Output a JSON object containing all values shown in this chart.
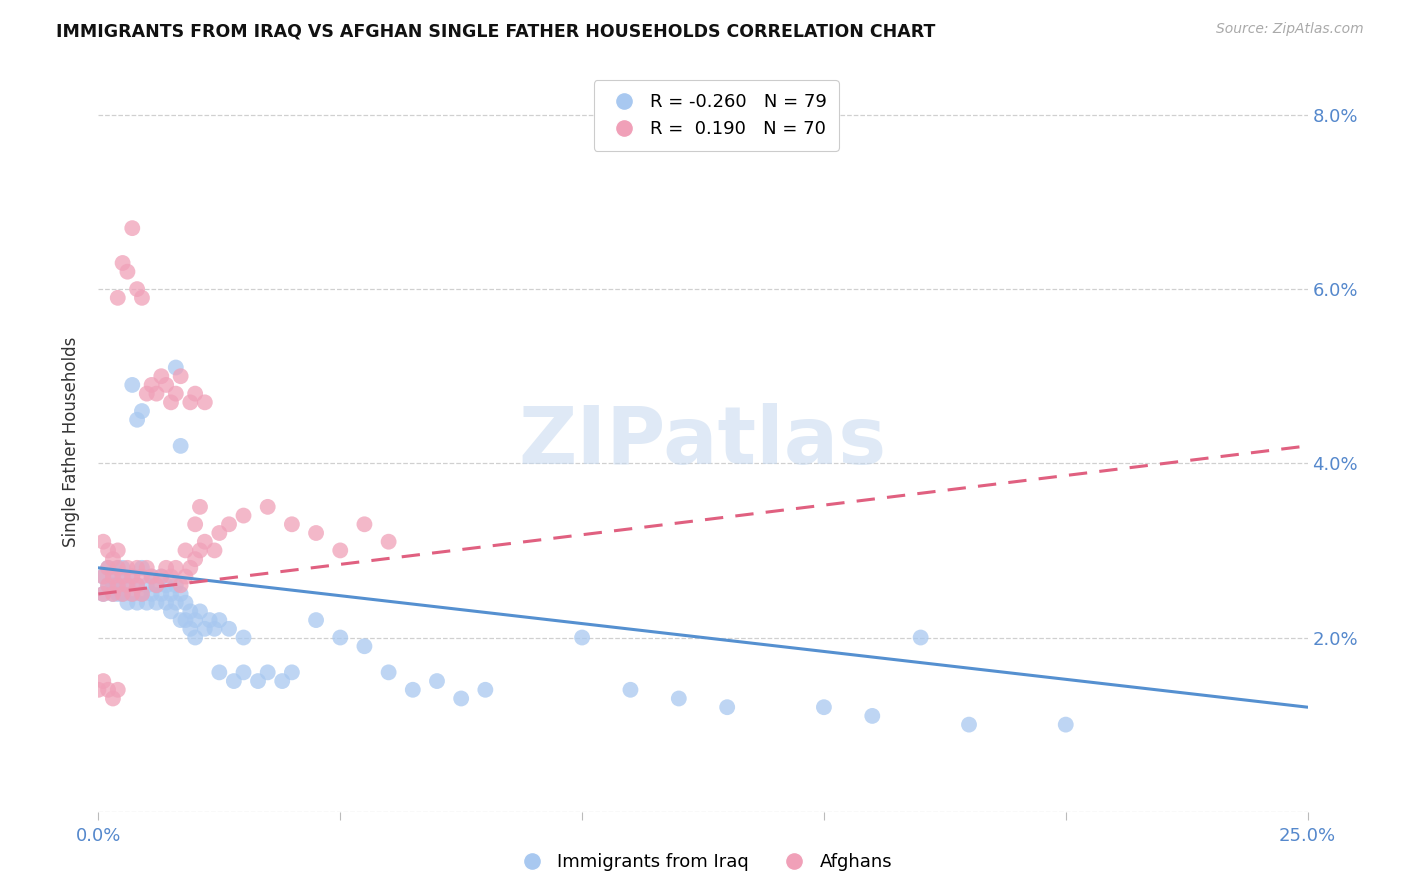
{
  "title": "IMMIGRANTS FROM IRAQ VS AFGHAN SINGLE FATHER HOUSEHOLDS CORRELATION CHART",
  "source": "Source: ZipAtlas.com",
  "ylabel": "Single Father Households",
  "x_min": 0.0,
  "x_max": 0.25,
  "y_min": 0.0,
  "y_max": 0.085,
  "x_ticks": [
    0.0,
    0.05,
    0.1,
    0.15,
    0.2,
    0.25
  ],
  "y_ticks": [
    0.0,
    0.02,
    0.04,
    0.06,
    0.08
  ],
  "iraq_color": "#a8c8f0",
  "afghan_color": "#f0a0b8",
  "iraq_R": -0.26,
  "iraq_N": 79,
  "afghan_R": 0.19,
  "afghan_N": 70,
  "iraq_line_color": "#5590d0",
  "afghan_line_color": "#e06080",
  "watermark": "ZIPatlas",
  "legend_iraq_label": "Immigrants from Iraq",
  "legend_afghan_label": "Afghans",
  "iraq_line_x0": 0.0,
  "iraq_line_y0": 0.028,
  "iraq_line_x1": 0.25,
  "iraq_line_y1": 0.012,
  "afghan_line_x0": 0.0,
  "afghan_line_y0": 0.025,
  "afghan_line_x1": 0.25,
  "afghan_line_y1": 0.042,
  "iraq_scatter": [
    [
      0.001,
      0.027
    ],
    [
      0.001,
      0.025
    ],
    [
      0.002,
      0.028
    ],
    [
      0.002,
      0.026
    ],
    [
      0.003,
      0.027
    ],
    [
      0.003,
      0.025
    ],
    [
      0.003,
      0.026
    ],
    [
      0.004,
      0.028
    ],
    [
      0.004,
      0.025
    ],
    [
      0.004,
      0.026
    ],
    [
      0.005,
      0.027
    ],
    [
      0.005,
      0.025
    ],
    [
      0.005,
      0.028
    ],
    [
      0.006,
      0.026
    ],
    [
      0.006,
      0.024
    ],
    [
      0.007,
      0.025
    ],
    [
      0.007,
      0.027
    ],
    [
      0.007,
      0.049
    ],
    [
      0.008,
      0.026
    ],
    [
      0.008,
      0.024
    ],
    [
      0.008,
      0.045
    ],
    [
      0.009,
      0.025
    ],
    [
      0.009,
      0.028
    ],
    [
      0.009,
      0.046
    ],
    [
      0.01,
      0.026
    ],
    [
      0.01,
      0.024
    ],
    [
      0.011,
      0.027
    ],
    [
      0.011,
      0.025
    ],
    [
      0.012,
      0.026
    ],
    [
      0.012,
      0.024
    ],
    [
      0.013,
      0.025
    ],
    [
      0.013,
      0.027
    ],
    [
      0.014,
      0.026
    ],
    [
      0.014,
      0.024
    ],
    [
      0.015,
      0.025
    ],
    [
      0.015,
      0.023
    ],
    [
      0.016,
      0.026
    ],
    [
      0.016,
      0.024
    ],
    [
      0.016,
      0.051
    ],
    [
      0.017,
      0.025
    ],
    [
      0.017,
      0.022
    ],
    [
      0.017,
      0.042
    ],
    [
      0.018,
      0.024
    ],
    [
      0.018,
      0.022
    ],
    [
      0.019,
      0.023
    ],
    [
      0.019,
      0.021
    ],
    [
      0.02,
      0.022
    ],
    [
      0.02,
      0.02
    ],
    [
      0.021,
      0.023
    ],
    [
      0.022,
      0.021
    ],
    [
      0.023,
      0.022
    ],
    [
      0.024,
      0.021
    ],
    [
      0.025,
      0.022
    ],
    [
      0.025,
      0.016
    ],
    [
      0.027,
      0.021
    ],
    [
      0.028,
      0.015
    ],
    [
      0.03,
      0.02
    ],
    [
      0.03,
      0.016
    ],
    [
      0.033,
      0.015
    ],
    [
      0.035,
      0.016
    ],
    [
      0.038,
      0.015
    ],
    [
      0.04,
      0.016
    ],
    [
      0.045,
      0.022
    ],
    [
      0.05,
      0.02
    ],
    [
      0.055,
      0.019
    ],
    [
      0.06,
      0.016
    ],
    [
      0.065,
      0.014
    ],
    [
      0.07,
      0.015
    ],
    [
      0.075,
      0.013
    ],
    [
      0.08,
      0.014
    ],
    [
      0.1,
      0.02
    ],
    [
      0.11,
      0.014
    ],
    [
      0.12,
      0.013
    ],
    [
      0.13,
      0.012
    ],
    [
      0.15,
      0.012
    ],
    [
      0.16,
      0.011
    ],
    [
      0.17,
      0.02
    ],
    [
      0.18,
      0.01
    ],
    [
      0.2,
      0.01
    ]
  ],
  "afghan_scatter": [
    [
      0.001,
      0.027
    ],
    [
      0.001,
      0.025
    ],
    [
      0.001,
      0.031
    ],
    [
      0.002,
      0.028
    ],
    [
      0.002,
      0.026
    ],
    [
      0.002,
      0.03
    ],
    [
      0.003,
      0.027
    ],
    [
      0.003,
      0.025
    ],
    [
      0.003,
      0.029
    ],
    [
      0.004,
      0.028
    ],
    [
      0.004,
      0.026
    ],
    [
      0.004,
      0.03
    ],
    [
      0.004,
      0.059
    ],
    [
      0.005,
      0.027
    ],
    [
      0.005,
      0.025
    ],
    [
      0.005,
      0.063
    ],
    [
      0.006,
      0.028
    ],
    [
      0.006,
      0.026
    ],
    [
      0.006,
      0.062
    ],
    [
      0.007,
      0.027
    ],
    [
      0.007,
      0.025
    ],
    [
      0.007,
      0.067
    ],
    [
      0.008,
      0.028
    ],
    [
      0.008,
      0.026
    ],
    [
      0.008,
      0.06
    ],
    [
      0.009,
      0.027
    ],
    [
      0.009,
      0.025
    ],
    [
      0.009,
      0.059
    ],
    [
      0.01,
      0.028
    ],
    [
      0.01,
      0.048
    ],
    [
      0.011,
      0.027
    ],
    [
      0.011,
      0.049
    ],
    [
      0.012,
      0.026
    ],
    [
      0.012,
      0.048
    ],
    [
      0.013,
      0.027
    ],
    [
      0.013,
      0.05
    ],
    [
      0.014,
      0.028
    ],
    [
      0.014,
      0.049
    ],
    [
      0.015,
      0.027
    ],
    [
      0.015,
      0.047
    ],
    [
      0.016,
      0.028
    ],
    [
      0.016,
      0.048
    ],
    [
      0.017,
      0.026
    ],
    [
      0.017,
      0.05
    ],
    [
      0.018,
      0.027
    ],
    [
      0.018,
      0.03
    ],
    [
      0.019,
      0.028
    ],
    [
      0.019,
      0.047
    ],
    [
      0.02,
      0.029
    ],
    [
      0.02,
      0.033
    ],
    [
      0.02,
      0.048
    ],
    [
      0.021,
      0.03
    ],
    [
      0.021,
      0.035
    ],
    [
      0.022,
      0.031
    ],
    [
      0.022,
      0.047
    ],
    [
      0.024,
      0.03
    ],
    [
      0.025,
      0.032
    ],
    [
      0.027,
      0.033
    ],
    [
      0.03,
      0.034
    ],
    [
      0.035,
      0.035
    ],
    [
      0.04,
      0.033
    ],
    [
      0.045,
      0.032
    ],
    [
      0.05,
      0.03
    ],
    [
      0.055,
      0.033
    ],
    [
      0.06,
      0.031
    ],
    [
      0.0,
      0.014
    ],
    [
      0.001,
      0.015
    ],
    [
      0.002,
      0.014
    ],
    [
      0.003,
      0.013
    ],
    [
      0.004,
      0.014
    ]
  ]
}
